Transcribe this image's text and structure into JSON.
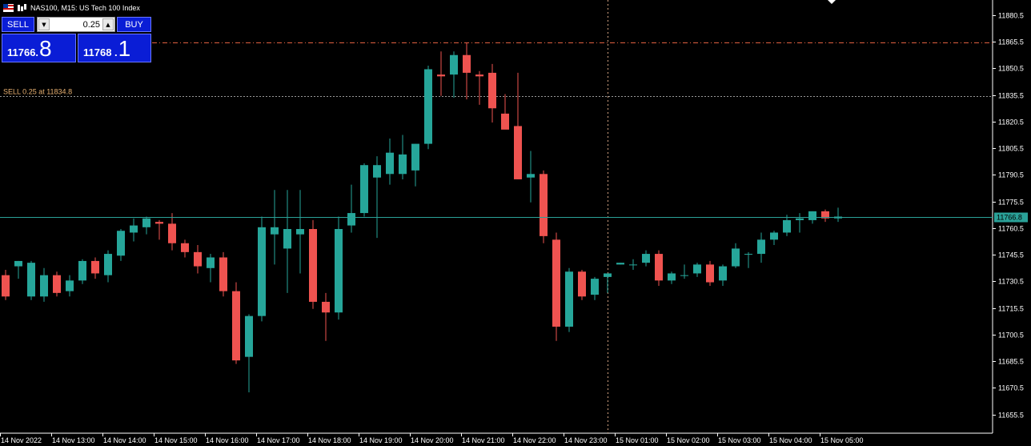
{
  "window": {
    "title": "NAS100, M15:  US Tech 100 Index"
  },
  "trade_panel": {
    "sell_label": "SELL",
    "buy_label": "BUY",
    "volume": "0.25",
    "sell_price_main": "11766.",
    "sell_price_big": "8",
    "buy_price_main": "11768 .",
    "buy_price_big": "1"
  },
  "colors": {
    "background": "#000000",
    "bull": "#26a69a",
    "bear": "#ef5350",
    "grid_text": "#ffffff",
    "order_line": "#e06040",
    "position_line": "#999999",
    "bid_line": "#2aa198"
  },
  "chart_data": {
    "type": "candlestick",
    "y_axis": {
      "ticks": [
        11880.5,
        11865.5,
        11850.5,
        11835.5,
        11820.5,
        11805.5,
        11790.5,
        11775.5,
        11760.5,
        11745.5,
        11730.5,
        11715.5,
        11700.5,
        11685.5,
        11670.5,
        11655.5
      ],
      "range": [
        11645,
        11889
      ]
    },
    "x_axis": {
      "labels": [
        "14 Nov 2022",
        "14 Nov 13:00",
        "14 Nov 14:00",
        "14 Nov 15:00",
        "14 Nov 16:00",
        "14 Nov 17:00",
        "14 Nov 18:00",
        "14 Nov 19:00",
        "14 Nov 20:00",
        "14 Nov 21:00",
        "14 Nov 22:00",
        "14 Nov 23:00",
        "15 Nov 01:00",
        "15 Nov 02:00",
        "15 Nov 03:00",
        "15 Nov 04:00",
        "15 Nov 05:00"
      ]
    },
    "position_line": {
      "label": "SELL 0.25 at 11834.8",
      "price": 11834.8
    },
    "order_line_price": 11865.0,
    "bid_price_label": "11766.8",
    "bid_price": 11766.8,
    "crosshair_index": 47,
    "candles": [
      [
        11734,
        11737,
        11720,
        11722
      ],
      [
        11739,
        11742,
        11732,
        11742
      ],
      [
        11722,
        11742,
        11720,
        11741
      ],
      [
        11722,
        11738,
        11719,
        11734
      ],
      [
        11734,
        11736,
        11722,
        11724
      ],
      [
        11725,
        11734,
        11722,
        11731
      ],
      [
        11731,
        11743,
        11729,
        11742
      ],
      [
        11742,
        11744,
        11732,
        11735
      ],
      [
        11734,
        11748,
        11730,
        11746
      ],
      [
        11745,
        11760,
        11742,
        11759
      ],
      [
        11758,
        11766,
        11753,
        11762
      ],
      [
        11761,
        11767,
        11757,
        11766
      ],
      [
        11764,
        11765,
        11754,
        11763
      ],
      [
        11763,
        11769,
        11748,
        11752
      ],
      [
        11752,
        11754,
        11744,
        11747
      ],
      [
        11747,
        11751,
        11735,
        11739
      ],
      [
        11738,
        11746,
        11730,
        11744
      ],
      [
        11744,
        11747,
        11722,
        11725
      ],
      [
        11725,
        11730,
        11684,
        11686
      ],
      [
        11688,
        11712,
        11668,
        11711
      ],
      [
        11711,
        11767,
        11708,
        11761
      ],
      [
        11757,
        11782,
        11740,
        11761
      ],
      [
        11749,
        11782,
        11724,
        11760
      ],
      [
        11757,
        11782,
        11735,
        11760
      ],
      [
        11760,
        11765,
        11715,
        11719
      ],
      [
        11719,
        11724,
        11697,
        11713
      ],
      [
        11713,
        11767,
        11709,
        11760
      ],
      [
        11762,
        11785,
        11758,
        11769
      ],
      [
        11769,
        11797,
        11767,
        11796
      ],
      [
        11789,
        11801,
        11755,
        11796
      ],
      [
        11791,
        11811,
        11785,
        11803
      ],
      [
        11791,
        11813,
        11788,
        11802
      ],
      [
        11793,
        11808,
        11784,
        11808
      ],
      [
        11808,
        11852,
        11805,
        11850
      ],
      [
        11847,
        11860,
        11835,
        11846
      ],
      [
        11847,
        11860,
        11834,
        11858
      ],
      [
        11858,
        11865,
        11833,
        11848
      ],
      [
        11847,
        11849,
        11830,
        11846
      ],
      [
        11848,
        11853,
        11820,
        11828
      ],
      [
        11825,
        11836,
        11818,
        11816
      ],
      [
        11818,
        11848,
        11788,
        11788
      ],
      [
        11789,
        11804,
        11775,
        11791
      ],
      [
        11791,
        11793,
        11752,
        11756
      ],
      [
        11754,
        11758,
        11697,
        11705
      ],
      [
        11705,
        11738,
        11702,
        11736
      ],
      [
        11736,
        11737,
        11720,
        11722
      ],
      [
        11723,
        11733,
        11720,
        11732
      ],
      [
        11733,
        11733,
        11724,
        11735
      ],
      [
        11740,
        11741,
        11740,
        11741
      ],
      [
        11740,
        11743,
        11737,
        11740
      ],
      [
        11741,
        11748,
        11739,
        11746
      ],
      [
        11746,
        11748,
        11728,
        11731
      ],
      [
        11731,
        11736,
        11729,
        11735
      ],
      [
        11734,
        11740,
        11732,
        11734
      ],
      [
        11735,
        11741,
        11733,
        11740
      ],
      [
        11740,
        11742,
        11728,
        11730
      ],
      [
        11731,
        11740,
        11728,
        11739
      ],
      [
        11739,
        11752,
        11738,
        11749
      ],
      [
        11746,
        11747,
        11738,
        11746
      ],
      [
        11746,
        11758,
        11741,
        11754
      ],
      [
        11754,
        11759,
        11751,
        11758
      ],
      [
        11758,
        11768,
        11756,
        11765
      ],
      [
        11765,
        11769,
        11758,
        11766
      ],
      [
        11765,
        11770,
        11763,
        11770
      ],
      [
        11770,
        11771,
        11764,
        11766
      ],
      [
        11766,
        11772,
        11764,
        11767
      ]
    ]
  }
}
